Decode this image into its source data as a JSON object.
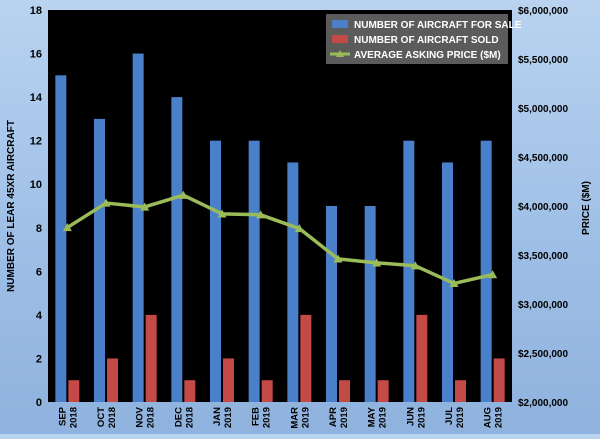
{
  "chart_data": {
    "type": "bar",
    "categories": [
      [
        "SEP",
        "2018"
      ],
      [
        "OCT",
        "2018"
      ],
      [
        "NOV",
        "2018"
      ],
      [
        "DEC",
        "2018"
      ],
      [
        "JAN",
        "2019"
      ],
      [
        "FEB",
        "2019"
      ],
      [
        "MAR",
        "2019"
      ],
      [
        "APR",
        "2019"
      ],
      [
        "MAY",
        "2019"
      ],
      [
        "JUN",
        "2019"
      ],
      [
        "JUL",
        "2019"
      ],
      [
        "AUG",
        "2019"
      ]
    ],
    "series": [
      {
        "name": "NUMBER OF AIRCRAFT FOR SALE",
        "kind": "bar",
        "axis": "left",
        "color": "#4a7fc9",
        "values": [
          15,
          13,
          16,
          14,
          12,
          12,
          11,
          9,
          9,
          12,
          11,
          12
        ]
      },
      {
        "name": "NUMBER OF AIRCRAFT SOLD",
        "kind": "bar",
        "axis": "left",
        "color": "#c44a48",
        "values": [
          1,
          2,
          4,
          1,
          2,
          1,
          4,
          1,
          1,
          4,
          1,
          2
        ]
      },
      {
        "name": "AVERAGE ASKING PRICE ($M)",
        "kind": "line",
        "axis": "right",
        "color": "#9bbb59",
        "values": [
          3780000,
          4030000,
          3990000,
          4110000,
          3920000,
          3910000,
          3770000,
          3460000,
          3420000,
          3390000,
          3210000,
          3300000
        ]
      }
    ],
    "ylabel": "NUMBER OF LEAR 45XR AIRCRAFT",
    "y2label": "PRICE ($M)",
    "ylim": [
      0,
      18
    ],
    "y2lim": [
      2000000,
      6000000
    ],
    "yticks": [
      "0",
      "2",
      "4",
      "6",
      "8",
      "10",
      "12",
      "14",
      "16",
      "18"
    ],
    "y2ticks": [
      "$2,000,000",
      "$2,500,000",
      "$3,000,000",
      "$3,500,000",
      "$4,000,000",
      "$4,500,000",
      "$5,000,000",
      "$5,500,000",
      "$6,000,000"
    ],
    "legend_position": "top-right",
    "plot_background": "#000000",
    "grid": false
  }
}
